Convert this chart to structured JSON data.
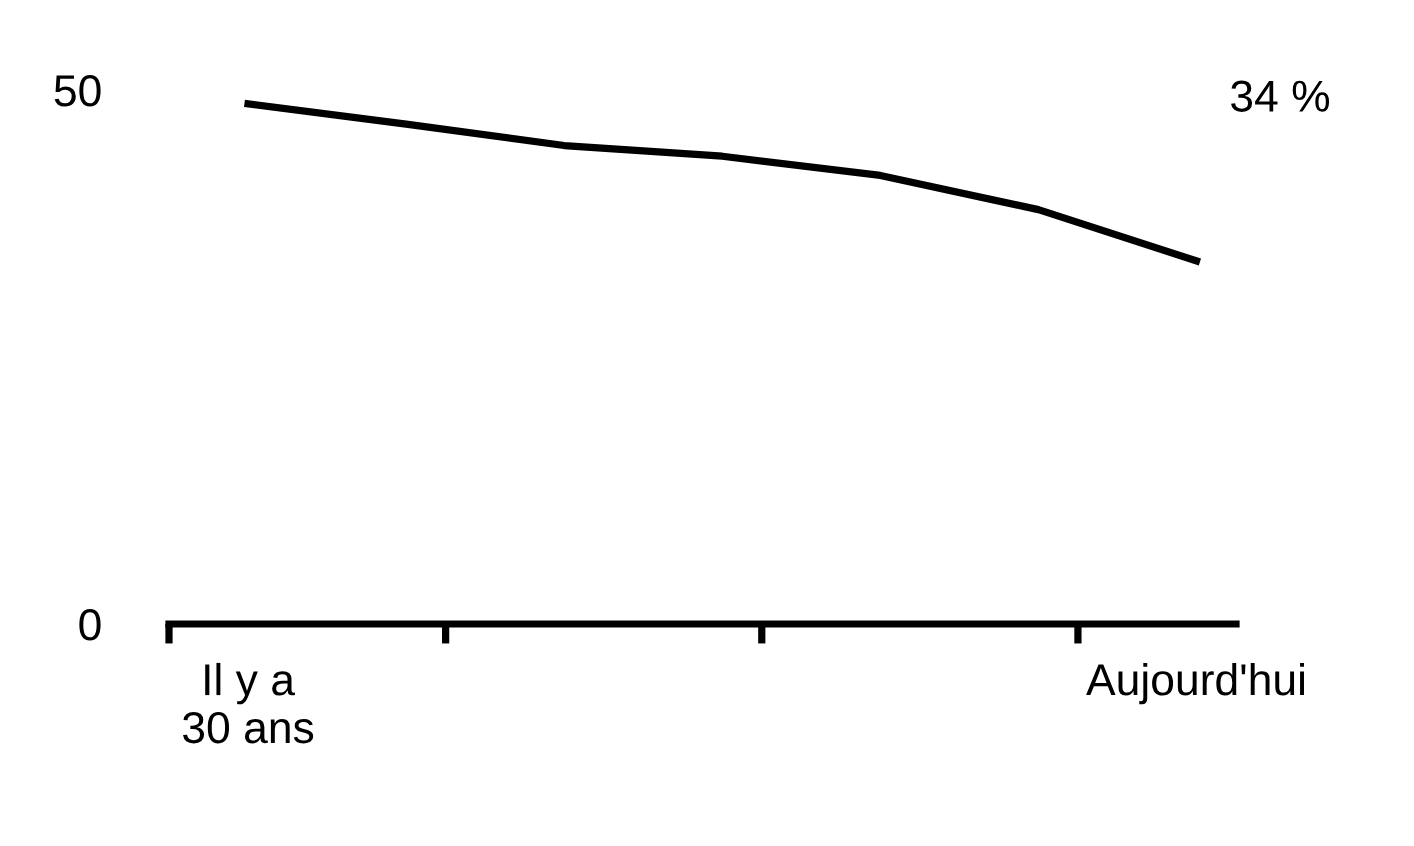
{
  "chart_data": {
    "type": "line",
    "categories": [
      "Il y a\n30 ans",
      null,
      null,
      null,
      null,
      null,
      "Aujourd'hui"
    ],
    "series": [
      {
        "color": "#000000",
        "values": [
          48.7,
          46.8,
          44.8,
          43.8,
          42,
          38.8,
          34
        ]
      }
    ],
    "ylim": [
      0,
      50
    ],
    "yticks": [
      0,
      50
    ],
    "annotations": [
      "34 %"
    ],
    "grid": false,
    "legend": false,
    "marker": "none",
    "line_style": "solid"
  }
}
